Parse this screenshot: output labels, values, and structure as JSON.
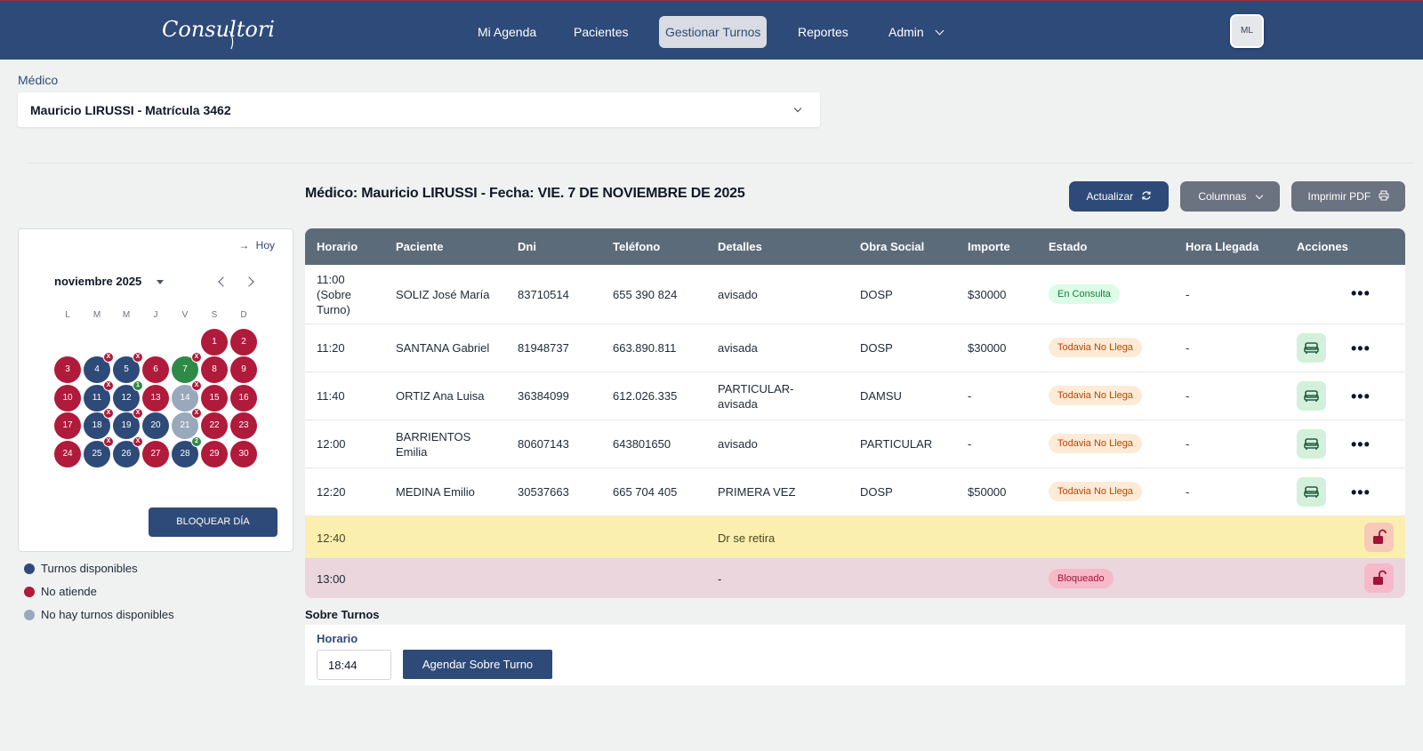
{
  "app": {
    "logo_text": "Consultori"
  },
  "nav": {
    "items": [
      "Mi Agenda",
      "Pacientes",
      "Gestionar Turnos",
      "Reportes",
      "Admin"
    ],
    "active": "Gestionar Turnos",
    "avatar": "ML"
  },
  "medico": {
    "label": "Médico",
    "selected": "Mauricio LIRUSSI - Matrícula 3462"
  },
  "heading": "Médico: Mauricio LIRUSSI - Fecha: VIE. 7 DE NOVIEMBRE DE 2025",
  "toolbar": {
    "actualizar": "Actualizar",
    "columnas": "Columnas",
    "imprimir": "Imprimir PDF"
  },
  "calendar": {
    "hoy": "Hoy",
    "month": "noviembre 2025",
    "weekdays": [
      "L",
      "M",
      "M",
      "J",
      "V",
      "S",
      "D"
    ],
    "days": [
      {
        "n": "1",
        "status": "red"
      },
      {
        "n": "2",
        "status": "red"
      },
      {
        "n": "3",
        "status": "red"
      },
      {
        "n": "4",
        "status": "blue",
        "badge": "X"
      },
      {
        "n": "5",
        "status": "blue",
        "badge": "X"
      },
      {
        "n": "6",
        "status": "red"
      },
      {
        "n": "7",
        "status": "green",
        "badge": "X"
      },
      {
        "n": "8",
        "status": "red"
      },
      {
        "n": "9",
        "status": "red"
      },
      {
        "n": "10",
        "status": "red"
      },
      {
        "n": "11",
        "status": "blue",
        "badge": "X"
      },
      {
        "n": "12",
        "status": "blue",
        "badge": "1",
        "badge_color": "green"
      },
      {
        "n": "13",
        "status": "red"
      },
      {
        "n": "14",
        "status": "grey",
        "badge": "X"
      },
      {
        "n": "15",
        "status": "red"
      },
      {
        "n": "16",
        "status": "red"
      },
      {
        "n": "17",
        "status": "red"
      },
      {
        "n": "18",
        "status": "blue",
        "badge": "X"
      },
      {
        "n": "19",
        "status": "blue",
        "badge": "X"
      },
      {
        "n": "20",
        "status": "blue"
      },
      {
        "n": "21",
        "status": "grey",
        "badge": "X"
      },
      {
        "n": "22",
        "status": "red"
      },
      {
        "n": "23",
        "status": "red"
      },
      {
        "n": "24",
        "status": "red"
      },
      {
        "n": "25",
        "status": "blue",
        "badge": "X"
      },
      {
        "n": "26",
        "status": "blue",
        "badge": "X"
      },
      {
        "n": "27",
        "status": "red"
      },
      {
        "n": "28",
        "status": "blue",
        "badge": "2",
        "badge_color": "green"
      },
      {
        "n": "29",
        "status": "red"
      },
      {
        "n": "30",
        "status": "red"
      }
    ],
    "block_day": "BLOQUEAR DÍA",
    "colors": {
      "blue": "#2e4a78",
      "red": "#b01a3b",
      "green": "#2f8a47",
      "grey": "#9aa8bb"
    }
  },
  "legend": [
    {
      "label": "Turnos disponibles",
      "color": "#2e4a78"
    },
    {
      "label": "No atiende",
      "color": "#b01a3b"
    },
    {
      "label": "No hay turnos disponibles",
      "color": "#9aa8bb"
    }
  ],
  "table": {
    "headers": [
      "Horario",
      "Paciente",
      "Dni",
      "Teléfono",
      "Detalles",
      "Obra Social",
      "Importe",
      "Estado",
      "Hora Llegada",
      "Acciones"
    ],
    "rows": [
      {
        "horario": "11:00 (Sobre Turno)",
        "paciente": "SOLIZ José María",
        "dni": "83710514",
        "telefono": "655 390 824",
        "detalles": "avisado",
        "obra": "DOSP",
        "importe": "$30000",
        "estado": "En Consulta",
        "llegada": "-"
      },
      {
        "horario": "11:20",
        "paciente": "SANTANA Gabriel",
        "dni": "81948737",
        "telefono": "663.890.811",
        "detalles": "avisada",
        "obra": "DOSP",
        "importe": "$30000",
        "estado": "Todavia No Llega",
        "llegada": "-"
      },
      {
        "horario": "11:40",
        "paciente": "ORTIZ Ana Luisa",
        "dni": "36384099",
        "telefono": "612.026.335",
        "detalles": "PARTICULAR- avisada",
        "obra": "DAMSU",
        "importe": "-",
        "estado": "Todavia No Llega",
        "llegada": "-"
      },
      {
        "horario": "12:00",
        "paciente": "BARRIENTOS Emilia",
        "dni": "80607143",
        "telefono": "643801650",
        "detalles": "avisado",
        "obra": "PARTICULAR",
        "importe": "-",
        "estado": "Todavia No Llega",
        "llegada": "-"
      },
      {
        "horario": "12:20",
        "paciente": "MEDINA Emilio",
        "dni": "30537663",
        "telefono": "665 704 405",
        "detalles": "PRIMERA VEZ",
        "obra": "DOSP",
        "importe": "$50000",
        "estado": "Todavia No Llega",
        "llegada": "-"
      }
    ],
    "blocked": [
      {
        "horario": "12:40",
        "detalles": "Dr se retira"
      },
      {
        "horario": "13:00",
        "detalles": "-",
        "estado": "Bloqueado"
      }
    ]
  },
  "sobre_turnos": {
    "title": "Sobre Turnos",
    "label": "Horario",
    "value": "18:44",
    "button": "Agendar Sobre Turno"
  }
}
